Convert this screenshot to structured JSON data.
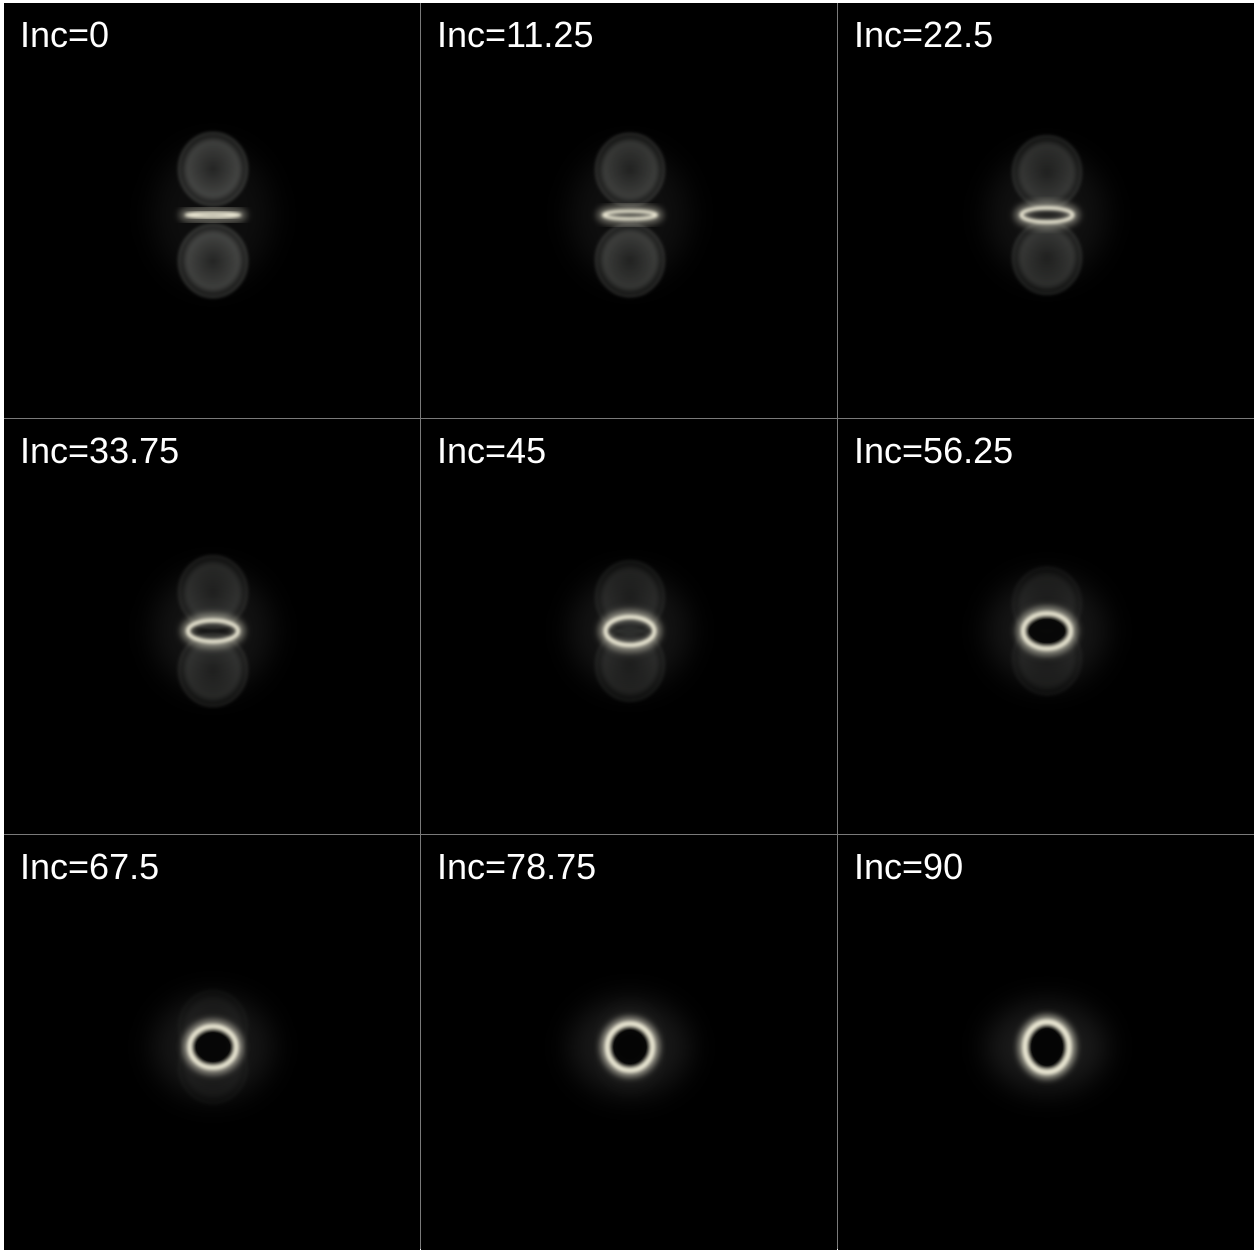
{
  "panels": [
    {
      "label": "Inc=0",
      "inclination": 0
    },
    {
      "label": "Inc=11.25",
      "inclination": 11.25
    },
    {
      "label": "Inc=22.5",
      "inclination": 22.5
    },
    {
      "label": "Inc=33.75",
      "inclination": 33.75
    },
    {
      "label": "Inc=45",
      "inclination": 45
    },
    {
      "label": "Inc=56.25",
      "inclination": 56.25
    },
    {
      "label": "Inc=67.5",
      "inclination": 67.5
    },
    {
      "label": "Inc=78.75",
      "inclination": 78.75
    },
    {
      "label": "Inc=90",
      "inclination": 90
    }
  ],
  "colors": {
    "background": "#000000",
    "separator": "#7a7a7a",
    "label": "#ffffff",
    "ring": "#f4f1dc",
    "lobe": "#cfd2cc"
  }
}
